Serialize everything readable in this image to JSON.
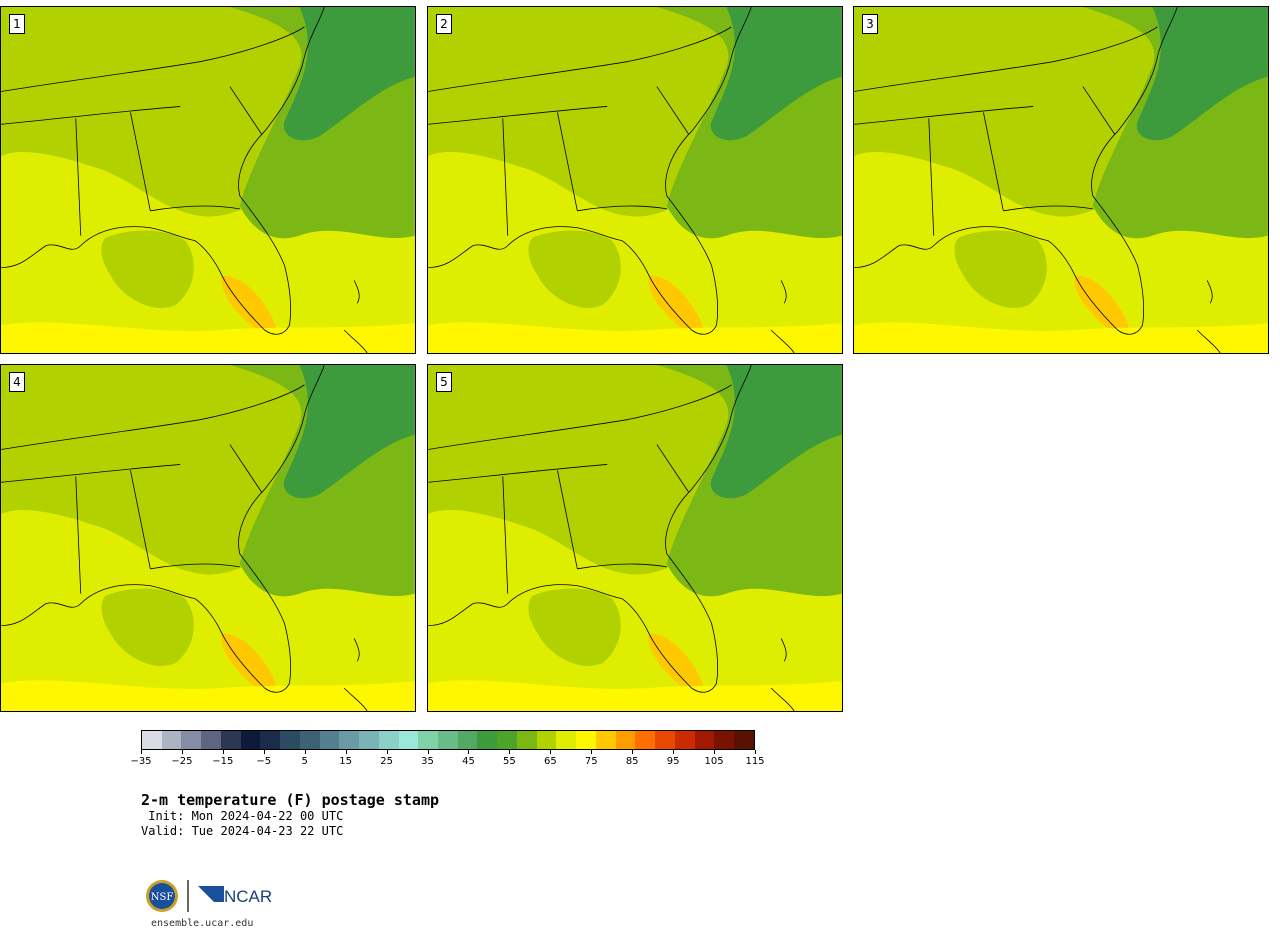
{
  "panels": [
    {
      "label": "1"
    },
    {
      "label": "2"
    },
    {
      "label": "3"
    },
    {
      "label": "4"
    },
    {
      "label": "5"
    }
  ],
  "colorbar": {
    "colors": [
      "#d9dde3",
      "#aeb3c4",
      "#858ca5",
      "#5d6583",
      "#2d3754",
      "#0d1a3a",
      "#1b2c48",
      "#2c4a62",
      "#3f6176",
      "#537f90",
      "#6b9aa7",
      "#79b3b5",
      "#8ccfc6",
      "#9be7da",
      "#7fd2a8",
      "#69bc87",
      "#53a863",
      "#3d9a3d",
      "#4ea32a",
      "#7cb815",
      "#b2d100",
      "#dfee00",
      "#fff700",
      "#ffc800",
      "#ff9d00",
      "#ff6f00",
      "#ea4a00",
      "#cc2a00",
      "#a01900",
      "#7a1200",
      "#5a1000"
    ],
    "tick_labels": [
      "−35",
      "−25",
      "−15",
      "−5",
      "5",
      "15",
      "25",
      "35",
      "45",
      "55",
      "65",
      "75",
      "85",
      "95",
      "105",
      "115"
    ]
  },
  "title": "2-m temperature (F) postage stamp",
  "init_line": " Init: Mon 2024-04-22 00 UTC",
  "valid_line": "Valid: Tue 2024-04-23 22 UTC",
  "logos": {
    "nsf": "NSF",
    "ncar": "NCAR"
  },
  "website": "ensemble.ucar.edu"
}
